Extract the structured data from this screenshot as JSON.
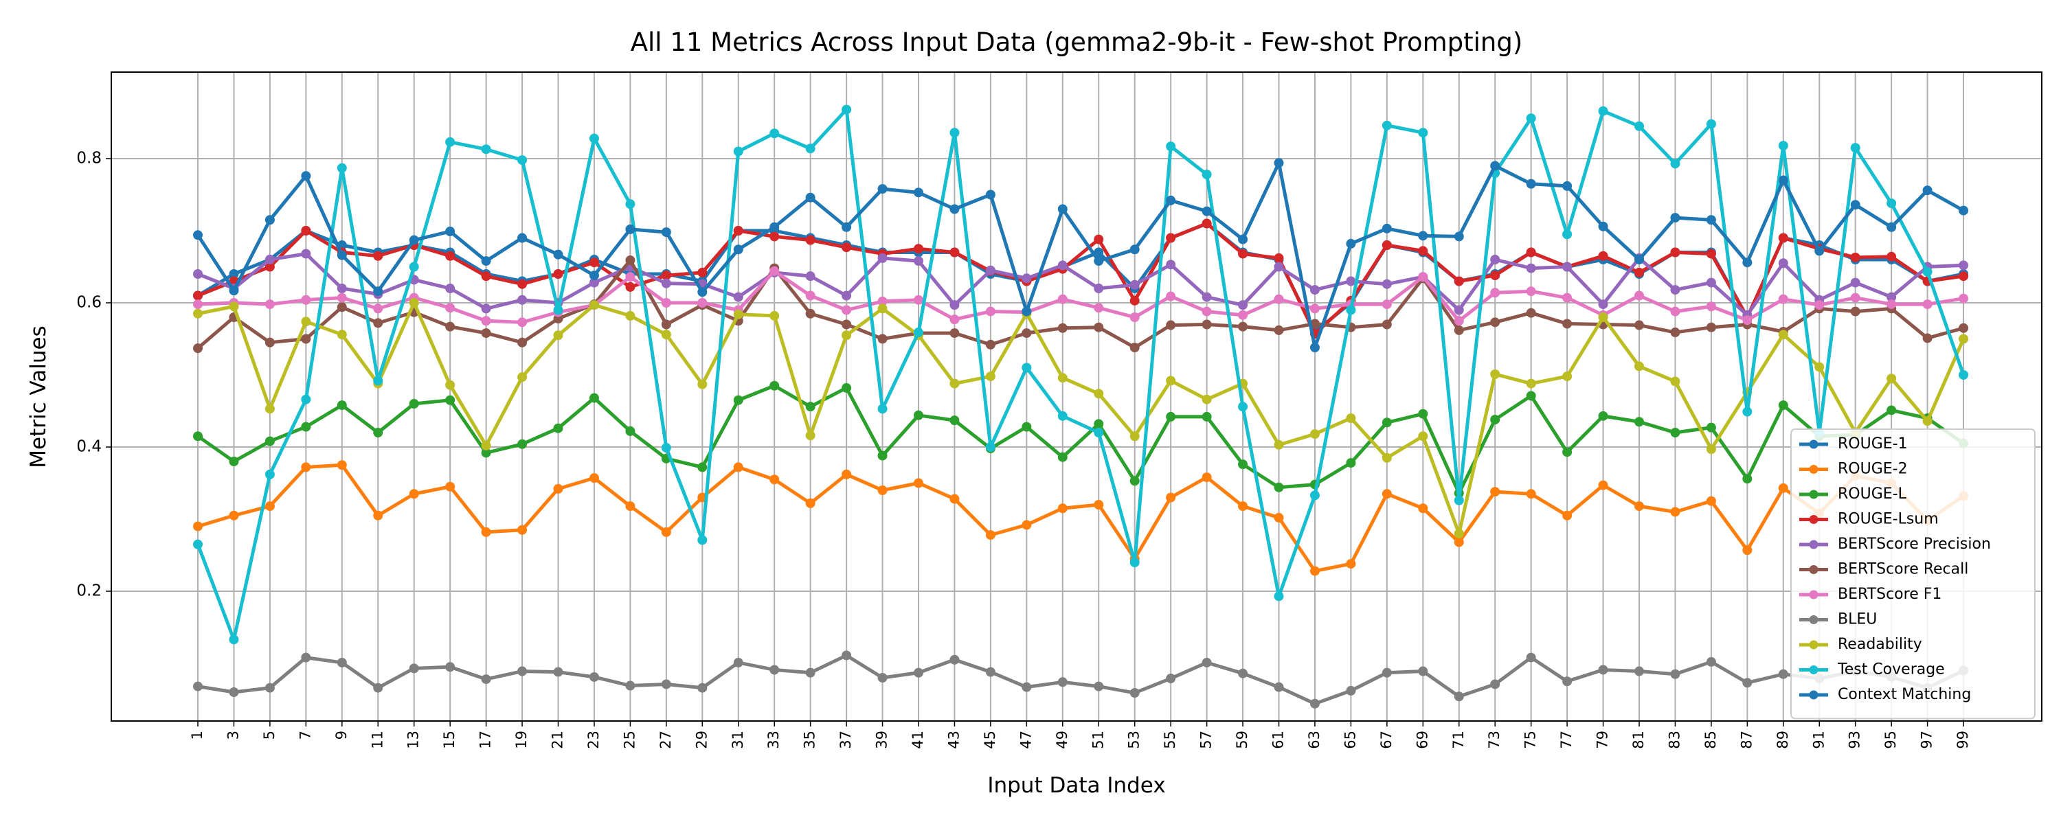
{
  "chart_data": {
    "type": "line",
    "title": "All 11 Metrics Across Input Data (gemma2-9b-it - Few-shot Prompting)",
    "xlabel": "Input Data Index",
    "ylabel": "Metric Values",
    "ylim": [
      0.02,
      0.92
    ],
    "yticks": [
      0.2,
      0.4,
      0.6,
      0.8
    ],
    "grid": true,
    "legend_position": "lower-right",
    "x": [
      1,
      3,
      5,
      7,
      9,
      11,
      13,
      15,
      17,
      19,
      21,
      23,
      25,
      27,
      29,
      31,
      33,
      35,
      37,
      39,
      41,
      43,
      45,
      47,
      49,
      51,
      53,
      55,
      57,
      59,
      61,
      63,
      65,
      67,
      69,
      71,
      73,
      75,
      77,
      79,
      81,
      83,
      85,
      87,
      89,
      91,
      93,
      95,
      97,
      99
    ],
    "series": [
      {
        "name": "ROUGE-1",
        "color": "#1f77b4",
        "values": [
          0.61,
          0.64,
          0.66,
          0.7,
          0.68,
          0.67,
          0.68,
          0.67,
          0.64,
          0.63,
          0.64,
          0.66,
          0.64,
          0.64,
          0.63,
          0.7,
          0.7,
          0.69,
          0.68,
          0.67,
          0.67,
          0.67,
          0.64,
          0.63,
          0.65,
          0.67,
          0.62,
          0.69,
          0.71,
          0.67,
          0.66,
          0.56,
          0.6,
          0.68,
          0.67,
          0.63,
          0.64,
          0.67,
          0.65,
          0.66,
          0.64,
          0.67,
          0.67,
          0.58,
          0.69,
          0.68,
          0.66,
          0.66,
          0.63,
          0.64
        ]
      },
      {
        "name": "ROUGE-2",
        "color": "#ff7f0e",
        "values": [
          0.29,
          0.305,
          0.318,
          0.372,
          0.375,
          0.305,
          0.335,
          0.345,
          0.282,
          0.285,
          0.342,
          0.357,
          0.318,
          0.282,
          0.33,
          0.372,
          0.355,
          0.322,
          0.362,
          0.34,
          0.35,
          0.328,
          0.278,
          0.292,
          0.315,
          0.32,
          0.245,
          0.33,
          0.358,
          0.318,
          0.302,
          0.228,
          0.238,
          0.335,
          0.315,
          0.268,
          0.338,
          0.335,
          0.305,
          0.347,
          0.318,
          0.31,
          0.325,
          0.257,
          0.343,
          0.308,
          0.36,
          0.35,
          0.298,
          0.332
        ]
      },
      {
        "name": "ROUGE-L",
        "color": "#2ca02c",
        "values": [
          0.415,
          0.38,
          0.408,
          0.428,
          0.458,
          0.42,
          0.46,
          0.465,
          0.392,
          0.404,
          0.426,
          0.468,
          0.422,
          0.384,
          0.372,
          0.465,
          0.485,
          0.456,
          0.482,
          0.388,
          0.444,
          0.437,
          0.398,
          0.428,
          0.386,
          0.432,
          0.353,
          0.442,
          0.442,
          0.376,
          0.344,
          0.348,
          0.378,
          0.434,
          0.446,
          0.336,
          0.438,
          0.471,
          0.393,
          0.443,
          0.435,
          0.42,
          0.427,
          0.356,
          0.458,
          0.415,
          0.417,
          0.451,
          0.44,
          0.405
        ]
      },
      {
        "name": "ROUGE-Lsum",
        "color": "#d62728",
        "values": [
          0.61,
          0.63,
          0.65,
          0.7,
          0.67,
          0.665,
          0.68,
          0.665,
          0.637,
          0.626,
          0.64,
          0.656,
          0.622,
          0.638,
          0.642,
          0.7,
          0.692,
          0.687,
          0.677,
          0.668,
          0.675,
          0.67,
          0.644,
          0.63,
          0.647,
          0.688,
          0.603,
          0.69,
          0.71,
          0.668,
          0.662,
          0.557,
          0.603,
          0.68,
          0.672,
          0.63,
          0.638,
          0.67,
          0.65,
          0.665,
          0.642,
          0.67,
          0.668,
          0.58,
          0.69,
          0.675,
          0.663,
          0.664,
          0.63,
          0.637
        ]
      },
      {
        "name": "BERTScore Precision",
        "color": "#9467bd",
        "values": [
          0.64,
          0.62,
          0.66,
          0.668,
          0.62,
          0.612,
          0.632,
          0.62,
          0.592,
          0.604,
          0.6,
          0.628,
          0.65,
          0.627,
          0.626,
          0.608,
          0.642,
          0.637,
          0.61,
          0.662,
          0.658,
          0.597,
          0.645,
          0.634,
          0.652,
          0.62,
          0.625,
          0.653,
          0.608,
          0.597,
          0.65,
          0.618,
          0.63,
          0.626,
          0.636,
          0.59,
          0.66,
          0.648,
          0.65,
          0.598,
          0.662,
          0.618,
          0.628,
          0.583,
          0.655,
          0.604,
          0.628,
          0.608,
          0.65,
          0.652
        ]
      },
      {
        "name": "BERTScore Recall",
        "color": "#8c564b",
        "values": [
          0.537,
          0.58,
          0.545,
          0.55,
          0.594,
          0.572,
          0.587,
          0.567,
          0.558,
          0.545,
          0.578,
          0.598,
          0.659,
          0.57,
          0.597,
          0.575,
          0.648,
          0.585,
          0.57,
          0.55,
          0.558,
          0.558,
          0.542,
          0.558,
          0.565,
          0.566,
          0.538,
          0.569,
          0.57,
          0.567,
          0.562,
          0.571,
          0.566,
          0.57,
          0.634,
          0.562,
          0.573,
          0.586,
          0.571,
          0.57,
          0.569,
          0.559,
          0.566,
          0.57,
          0.56,
          0.592,
          0.588,
          0.592,
          0.551,
          0.565
        ]
      },
      {
        "name": "BERTScore F1",
        "color": "#e377c2",
        "values": [
          0.598,
          0.6,
          0.598,
          0.604,
          0.607,
          0.592,
          0.607,
          0.593,
          0.575,
          0.573,
          0.587,
          0.597,
          0.636,
          0.6,
          0.6,
          0.59,
          0.644,
          0.61,
          0.59,
          0.602,
          0.604,
          0.577,
          0.588,
          0.587,
          0.605,
          0.593,
          0.58,
          0.609,
          0.588,
          0.583,
          0.605,
          0.592,
          0.598,
          0.598,
          0.636,
          0.575,
          0.614,
          0.616,
          0.607,
          0.583,
          0.61,
          0.588,
          0.595,
          0.576,
          0.605,
          0.597,
          0.607,
          0.598,
          0.598,
          0.606
        ]
      },
      {
        "name": "BLEU",
        "color": "#7f7f7f",
        "values": [
          0.068,
          0.06,
          0.066,
          0.108,
          0.101,
          0.066,
          0.093,
          0.095,
          0.078,
          0.089,
          0.088,
          0.081,
          0.069,
          0.071,
          0.066,
          0.101,
          0.091,
          0.087,
          0.111,
          0.08,
          0.087,
          0.105,
          0.088,
          0.067,
          0.074,
          0.068,
          0.059,
          0.079,
          0.101,
          0.086,
          0.067,
          0.044,
          0.062,
          0.087,
          0.089,
          0.054,
          0.071,
          0.108,
          0.075,
          0.091,
          0.089,
          0.085,
          0.102,
          0.073,
          0.085,
          0.079,
          0.089,
          0.081,
          0.066,
          0.09
        ]
      },
      {
        "name": "Readability",
        "color": "#bcbd22",
        "values": [
          0.585,
          0.595,
          0.453,
          0.574,
          0.556,
          0.488,
          0.6,
          0.486,
          0.402,
          0.497,
          0.555,
          0.597,
          0.582,
          0.556,
          0.487,
          0.584,
          0.582,
          0.416,
          0.555,
          0.592,
          0.555,
          0.488,
          0.498,
          0.585,
          0.496,
          0.474,
          0.415,
          0.492,
          0.466,
          0.488,
          0.403,
          0.418,
          0.44,
          0.385,
          0.415,
          0.28,
          0.501,
          0.488,
          0.498,
          0.58,
          0.512,
          0.491,
          0.397,
          0.476,
          0.556,
          0.511,
          0.42,
          0.495,
          0.436,
          0.55
        ]
      },
      {
        "name": "Test Coverage",
        "color": "#17becf",
        "values": [
          0.265,
          0.133,
          0.362,
          0.466,
          0.787,
          0.492,
          0.65,
          0.823,
          0.813,
          0.798,
          0.59,
          0.828,
          0.737,
          0.399,
          0.271,
          0.81,
          0.835,
          0.814,
          0.868,
          0.453,
          0.559,
          0.836,
          0.4,
          0.51,
          0.443,
          0.42,
          0.24,
          0.817,
          0.778,
          0.456,
          0.193,
          0.333,
          0.59,
          0.846,
          0.836,
          0.326,
          0.78,
          0.856,
          0.695,
          0.866,
          0.845,
          0.793,
          0.848,
          0.449,
          0.818,
          0.42,
          0.815,
          0.738,
          0.643,
          0.5
        ]
      },
      {
        "name": "Context Matching",
        "color": "#1f77b4",
        "values": [
          0.694,
          0.617,
          0.715,
          0.776,
          0.666,
          0.616,
          0.687,
          0.699,
          0.658,
          0.69,
          0.667,
          0.638,
          0.702,
          0.698,
          0.615,
          0.674,
          0.705,
          0.746,
          0.705,
          0.758,
          0.753,
          0.73,
          0.75,
          0.588,
          0.73,
          0.658,
          0.674,
          0.742,
          0.727,
          0.688,
          0.794,
          0.538,
          0.682,
          0.703,
          0.693,
          0.692,
          0.79,
          0.765,
          0.762,
          0.706,
          0.66,
          0.718,
          0.715,
          0.656,
          0.77,
          0.672,
          0.736,
          0.705,
          0.756,
          0.728
        ]
      }
    ]
  }
}
